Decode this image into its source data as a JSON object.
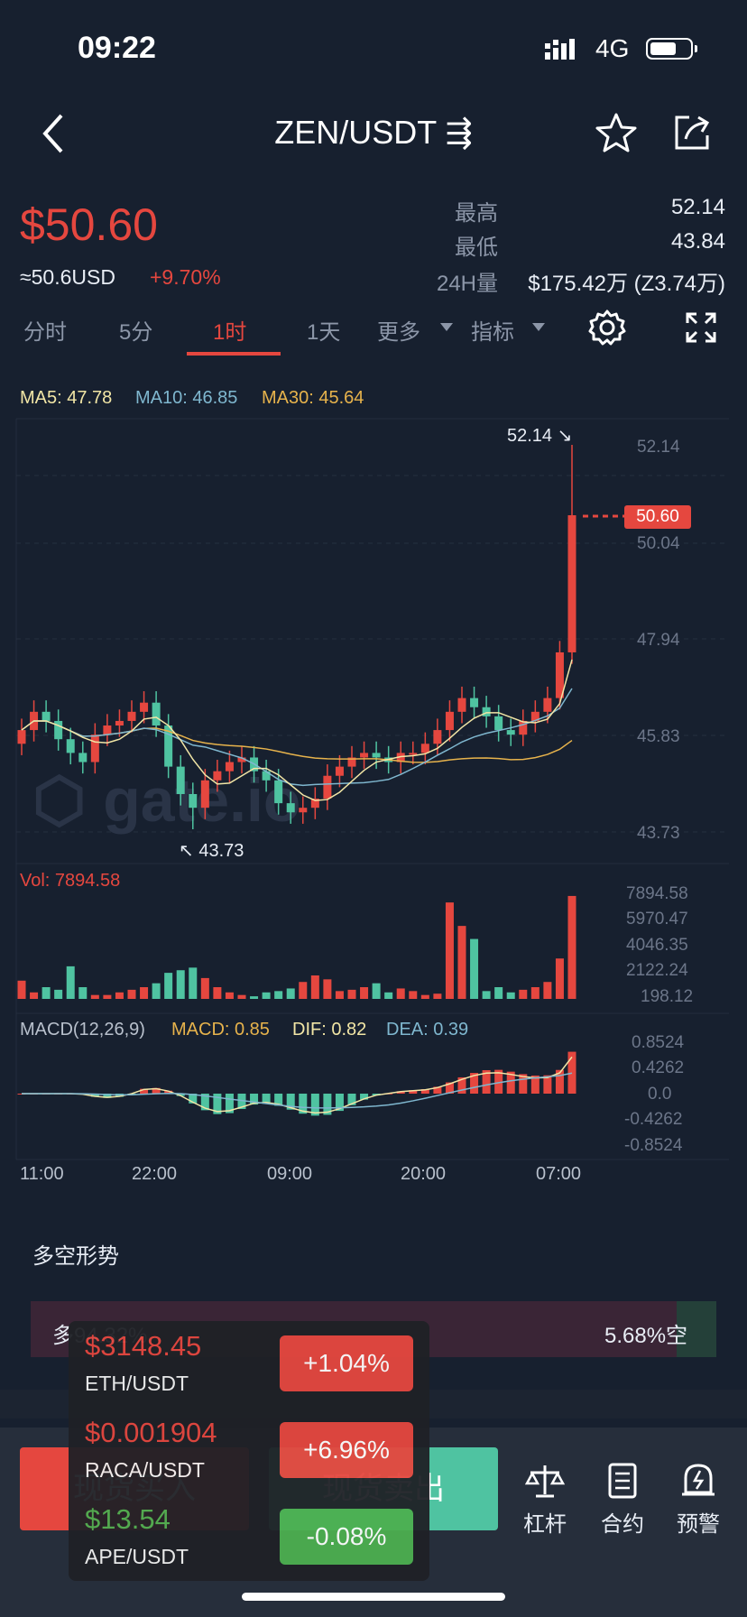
{
  "status_bar": {
    "time": "09:22",
    "network": "4G"
  },
  "header": {
    "title": "ZEN/USDT ⇶"
  },
  "ticker": {
    "price": "$50.60",
    "usd": "≈50.6USD",
    "change": "+9.70%",
    "high_label": "最高",
    "high_value": "52.14",
    "low_label": "最低",
    "low_value": "43.84",
    "vol_label": "24H量",
    "vol_value": "$175.42万 (Z3.74万)"
  },
  "tabs": [
    {
      "label": "分时"
    },
    {
      "label": "5分"
    },
    {
      "label": "1时"
    },
    {
      "label": "1天"
    },
    {
      "label": "更多"
    },
    {
      "label": "指标"
    }
  ],
  "indicators": {
    "ma5": "MA5: 47.78",
    "ma10": "MA10: 46.85",
    "ma30": "MA30: 45.64"
  },
  "chart_labels": {
    "high_marker": "52.14",
    "low_marker": "43.73",
    "current_price_tag": "50.60",
    "price_axis": [
      "52.14",
      "50.04",
      "47.94",
      "45.83",
      "43.73"
    ],
    "vol_label": "Vol: 7894.58",
    "vol_axis": [
      "7894.58",
      "5970.47",
      "4046.35",
      "2122.24",
      "198.12"
    ],
    "macd_label": "MACD(12,26,9)",
    "macd_val": "MACD: 0.85",
    "dif_val": "DIF: 0.82",
    "dea_val": "DEA: 0.39",
    "macd_axis": [
      "0.8524",
      "0.4262",
      "0.0",
      "-0.4262",
      "-0.8524"
    ],
    "time_axis": [
      "11:00",
      "22:00",
      "09:00",
      "20:00",
      "07:00"
    ],
    "watermark": "gate.io"
  },
  "sentiment": {
    "title": "多空形势",
    "long_text": "多94.32%",
    "short_text": "5.68%空"
  },
  "bottom": {
    "buy": "现货买入",
    "sell": "现货卖出",
    "tools": [
      {
        "label": "杠杆"
      },
      {
        "label": "合约"
      },
      {
        "label": "预警"
      }
    ]
  },
  "popup": [
    {
      "price": "$3148.45",
      "pair": "ETH/USDT",
      "change": "+1.04%"
    },
    {
      "price": "$0.001904",
      "pair": "RACA/USDT",
      "change": "+6.96%"
    },
    {
      "price": "$13.54",
      "pair": "APE/USDT",
      "change": "-0.08%"
    }
  ],
  "colors": {
    "up": "#e5473f",
    "down": "#4fc3a1",
    "bg": "#17202f"
  }
}
